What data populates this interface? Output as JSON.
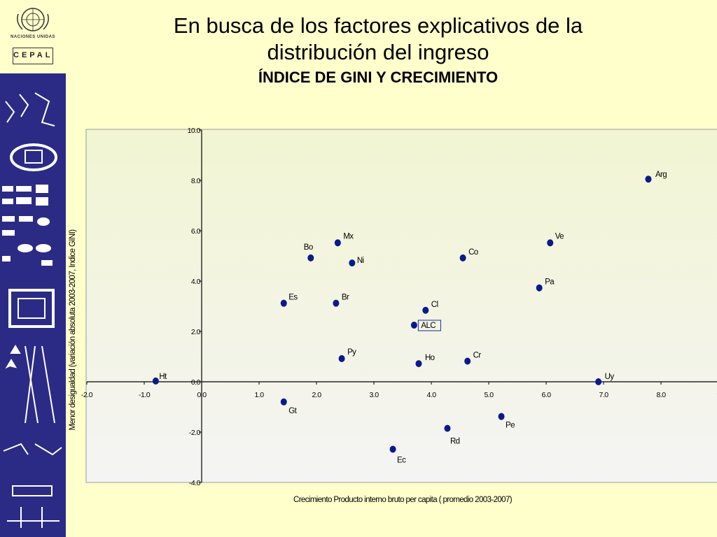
{
  "header": {
    "title": "En busca de los factores explicativos de la distribución del ingreso",
    "subtitle": "ÍNDICE DE GINI Y CRECIMIENTO",
    "logo_un_text": "NACIONES UNIDAS",
    "logo_org_text": "CEPAL"
  },
  "colors": {
    "sidebar": "#2b2b86",
    "background": "#ffffcc",
    "marker": "#0a1a8c"
  },
  "chart_data": {
    "type": "scatter",
    "xlabel": "Crecimiento Producto interno bruto per capita ( promedio 2003-2007)",
    "ylabel": "Menor desigualdad (variación absoluta 2003-2007, Indice GINI)",
    "xlim": [
      -2.0,
      9.0
    ],
    "ylim": [
      -4.0,
      10.0
    ],
    "x_ticks": [
      "-2.0",
      "-1.0",
      "0.0",
      "1.0",
      "2.0",
      "3.0",
      "4.0",
      "5.0",
      "6.0",
      "7.0",
      "8.0",
      "9"
    ],
    "y_ticks": [
      "-4.0",
      "-2.0",
      "0.0",
      "2.0",
      "4.0",
      "6.0",
      "8.0",
      "10.0"
    ],
    "points": [
      {
        "label": "Arg",
        "x": 7.78,
        "y": 8.05
      },
      {
        "label": "Ve",
        "x": 6.07,
        "y": 5.52
      },
      {
        "label": "Mx",
        "x": 2.37,
        "y": 5.52
      },
      {
        "label": "Bo",
        "x": 1.9,
        "y": 4.92
      },
      {
        "label": "Co",
        "x": 4.55,
        "y": 4.92
      },
      {
        "label": "Ni",
        "x": 2.62,
        "y": 4.72
      },
      {
        "label": "Pa",
        "x": 5.88,
        "y": 3.73
      },
      {
        "label": "Es",
        "x": 1.43,
        "y": 3.12
      },
      {
        "label": "Br",
        "x": 2.34,
        "y": 3.12
      },
      {
        "label": "Cl",
        "x": 3.9,
        "y": 2.84
      },
      {
        "label": "ALC",
        "x": 3.7,
        "y": 2.25,
        "boxed": true
      },
      {
        "label": "Py",
        "x": 2.44,
        "y": 0.92
      },
      {
        "label": "Ho",
        "x": 3.78,
        "y": 0.72
      },
      {
        "label": "Cr",
        "x": 4.63,
        "y": 0.82
      },
      {
        "label": "Ht",
        "x": -0.8,
        "y": 0.03
      },
      {
        "label": "Uy",
        "x": 6.91,
        "y": 0.0
      },
      {
        "label": "Gt",
        "x": 1.43,
        "y": -0.8
      },
      {
        "label": "Pe",
        "x": 5.22,
        "y": -1.38
      },
      {
        "label": "Rd",
        "x": 4.28,
        "y": -1.85
      },
      {
        "label": "Ec",
        "x": 3.33,
        "y": -2.68
      }
    ],
    "grid": false,
    "legend": "none"
  }
}
